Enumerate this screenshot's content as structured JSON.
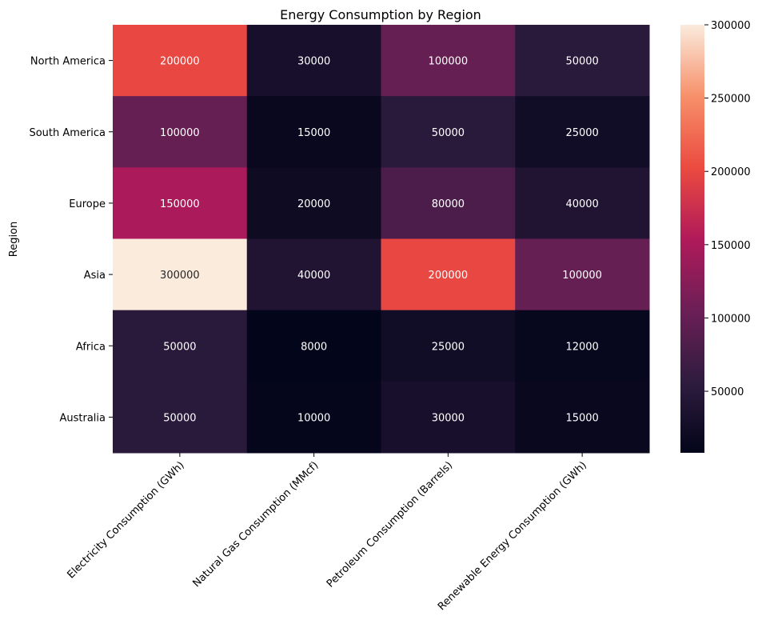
{
  "chart_data": {
    "type": "heatmap",
    "title": "Energy Consumption by Region",
    "xlabel": "",
    "ylabel": "Region",
    "columns": [
      "Electricity Consumption (GWh)",
      "Natural Gas Consumption (MMcf)",
      "Petroleum Consumption (Barrels)",
      "Renewable Energy Consumption (GWh)"
    ],
    "rows": [
      "North America",
      "South America",
      "Europe",
      "Asia",
      "Africa",
      "Australia"
    ],
    "values": [
      [
        200000,
        30000,
        100000,
        50000
      ],
      [
        100000,
        15000,
        50000,
        25000
      ],
      [
        150000,
        20000,
        80000,
        40000
      ],
      [
        300000,
        40000,
        200000,
        100000
      ],
      [
        50000,
        8000,
        25000,
        12000
      ],
      [
        50000,
        10000,
        30000,
        15000
      ]
    ],
    "value_labels": [
      [
        "200000",
        "30000",
        "100000",
        "50000"
      ],
      [
        "100000",
        "15000",
        "50000",
        "25000"
      ],
      [
        "150000",
        "20000",
        "80000",
        "40000"
      ],
      [
        "300000",
        "40000",
        "200000",
        "100000"
      ],
      [
        "50000",
        "8000",
        "25000",
        "12000"
      ],
      [
        "50000",
        "10000",
        "30000",
        "15000"
      ]
    ],
    "colorbar": {
      "min": 8000,
      "max": 300000,
      "ticks": [
        50000,
        100000,
        150000,
        200000,
        250000,
        300000
      ],
      "tick_labels": [
        "50000",
        "100000",
        "150000",
        "200000",
        "250000",
        "300000"
      ]
    },
    "colormap": [
      "#03051a",
      "#2f1c3f",
      "#6c1f56",
      "#b11a5a",
      "#eb4b40",
      "#f7906a",
      "#faebdd"
    ],
    "grid": false
  }
}
